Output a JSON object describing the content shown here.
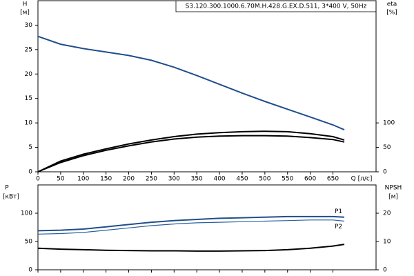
{
  "chart_data": [
    {
      "type": "line",
      "title": "S3.120.300.1000.6.70M.H.428.G.EX.D.511, 3*400 V, 50Hz",
      "ylabel": "H",
      "yunit": "[м]",
      "y2label": "eta",
      "y2unit": "[%]",
      "xlabel": "Q [л/с]",
      "x": [
        0,
        50,
        100,
        150,
        200,
        250,
        300,
        350,
        400,
        450,
        500,
        550,
        600,
        650,
        675
      ],
      "xlim": [
        0,
        745
      ],
      "xticks": [
        0,
        50,
        100,
        150,
        200,
        250,
        300,
        350,
        400,
        450,
        500,
        550,
        600,
        650
      ],
      "ylim": [
        0,
        35
      ],
      "yticks": [
        0,
        5,
        10,
        15,
        20,
        25,
        30
      ],
      "y2lim": [
        0,
        350
      ],
      "y2ticks": [
        0,
        50,
        100
      ],
      "series": [
        {
          "color": "#1f4e8c",
          "values": [
            27.7,
            26.1,
            25.2,
            24.5,
            23.8,
            22.8,
            21.4,
            19.7,
            17.9,
            16.1,
            14.4,
            12.8,
            11.2,
            9.6,
            8.6
          ]
        },
        {
          "color": "#000000",
          "axis": "y2",
          "values": [
            0,
            22,
            36,
            47,
            57,
            65,
            72,
            77,
            80,
            82,
            83,
            82,
            78,
            72,
            65
          ]
        },
        {
          "color": "#000000",
          "axis": "y2",
          "values": [
            0,
            19,
            33,
            44,
            53,
            61,
            67,
            71,
            73,
            74,
            74,
            73,
            70,
            66,
            61
          ]
        }
      ]
    },
    {
      "type": "line",
      "ylabel": "P",
      "yunit": "[кВт]",
      "y2label": "NPSH",
      "y2unit": "[м]",
      "x": [
        0,
        50,
        100,
        150,
        200,
        250,
        300,
        350,
        400,
        450,
        500,
        550,
        600,
        650,
        675
      ],
      "xlim": [
        0,
        745
      ],
      "xticks": [
        0,
        50,
        100,
        150,
        200,
        250,
        300,
        350,
        400,
        450,
        500,
        550,
        600,
        650
      ],
      "ylim": [
        0,
        150
      ],
      "yticks": [
        0,
        50,
        100
      ],
      "y2lim": [
        0,
        30
      ],
      "y2ticks": [
        0,
        10,
        20
      ],
      "series": [
        {
          "name": "P1",
          "color": "#1f4e8c",
          "values": [
            69,
            70,
            72,
            76,
            80,
            84,
            87,
            89,
            91,
            92,
            93,
            94,
            94,
            94,
            93
          ]
        },
        {
          "name": "P2",
          "color": "#2a5f9e",
          "values": [
            63,
            64,
            66,
            70,
            74,
            78,
            81,
            83,
            84,
            85,
            86,
            87,
            88,
            88,
            86
          ]
        },
        {
          "color": "#000000",
          "axis": "y2",
          "values": [
            7.6,
            7.3,
            7.1,
            6.9,
            6.8,
            6.7,
            6.7,
            6.6,
            6.6,
            6.7,
            6.8,
            7.1,
            7.6,
            8.4,
            9.0
          ]
        }
      ]
    }
  ]
}
